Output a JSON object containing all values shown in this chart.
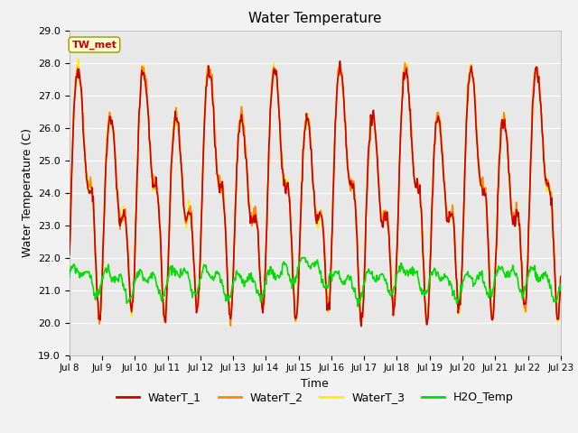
{
  "title": "Water Temperature",
  "xlabel": "Time",
  "ylabel": "Water Temperature (C)",
  "ylim": [
    19.0,
    29.0
  ],
  "yticks": [
    19.0,
    20.0,
    21.0,
    22.0,
    23.0,
    24.0,
    25.0,
    26.0,
    27.0,
    28.0,
    29.0
  ],
  "xtick_labels": [
    "Jul 8",
    "Jul 9",
    "Jul 10",
    "Jul 11",
    "Jul 12",
    "Jul 13",
    "Jul 14",
    "Jul 15",
    "Jul 16",
    "Jul 17",
    "Jul 18",
    "Jul 19",
    "Jul 20",
    "Jul 21",
    "Jul 22",
    "Jul 23"
  ],
  "annotation_text": "TW_met",
  "annotation_facecolor": "#FFFFCC",
  "annotation_edgecolor": "#999900",
  "annotation_textcolor": "#CC0000",
  "line_colors": {
    "WaterT_1": "#CC0000",
    "WaterT_2": "#FF8800",
    "WaterT_3": "#FFEE00",
    "H2O_Temp": "#00DD00"
  },
  "line_widths": {
    "WaterT_1": 1.2,
    "WaterT_2": 1.2,
    "WaterT_3": 1.2,
    "H2O_Temp": 1.2
  },
  "legend_labels": [
    "WaterT_1",
    "WaterT_2",
    "WaterT_3",
    "H2O_Temp"
  ],
  "bg_color": "#E8E8E8",
  "grid_color": "#FFFFFF",
  "fig_bg": "#F2F2F2",
  "n_points": 720
}
